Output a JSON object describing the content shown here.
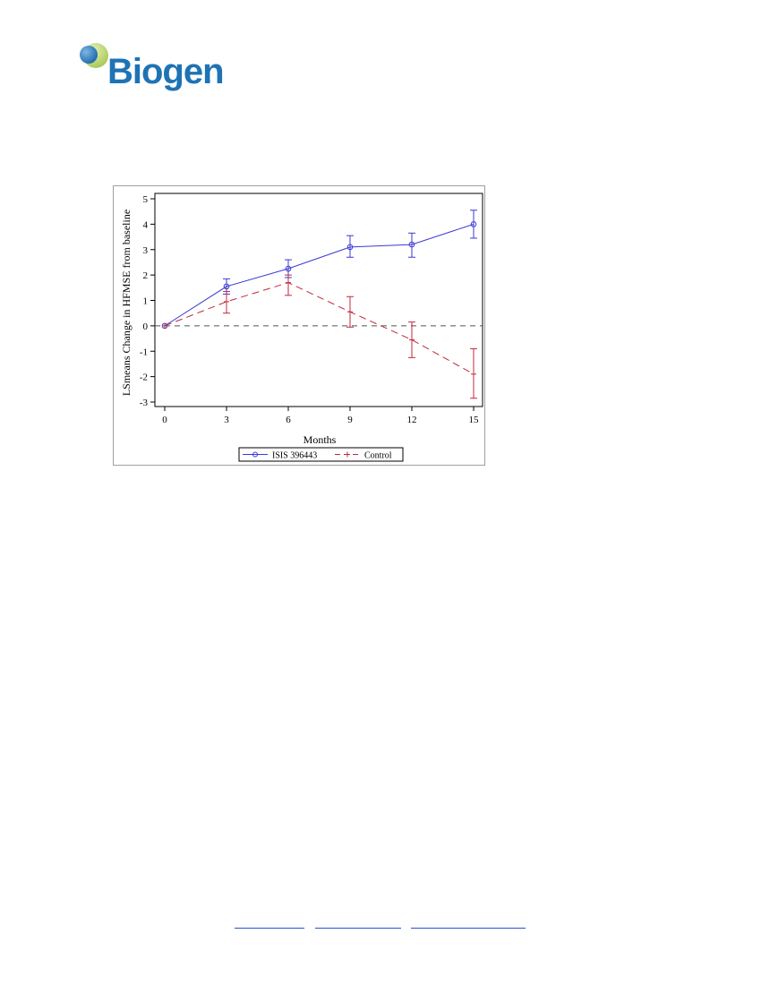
{
  "brand": {
    "name": "Biogen",
    "trademark": ".",
    "colors": {
      "text": "#1e73b5",
      "sphere_dark": "#1b6aa8",
      "sphere_light": "#b8d56a"
    }
  },
  "chart_data": {
    "type": "line",
    "title": "",
    "xlabel": "Months",
    "ylabel": "LSmeans Change in HFMSE from baseline",
    "x": [
      0,
      3,
      6,
      9,
      12,
      15
    ],
    "xticks": [
      "0",
      "3",
      "6",
      "9",
      "12",
      "15"
    ],
    "yticks": [
      "5",
      "4",
      "3",
      "2",
      "1",
      "0",
      "-1",
      "-2",
      "-3"
    ],
    "xlim": [
      0,
      15
    ],
    "ylim": [
      -3,
      5
    ],
    "reference_line_y": 0,
    "grid": false,
    "legend_placement": "bottom",
    "series": [
      {
        "name": "ISIS 396443",
        "color": "#3a3ad6",
        "style": "solid",
        "marker": "circle",
        "values": [
          0,
          1.55,
          2.25,
          3.1,
          3.2,
          4.0
        ],
        "lower": [
          0,
          1.25,
          1.9,
          2.7,
          2.7,
          3.45
        ],
        "upper": [
          0,
          1.85,
          2.6,
          3.55,
          3.65,
          4.55
        ]
      },
      {
        "name": "Control",
        "color": "#c0283c",
        "style": "dashed",
        "marker": "plus",
        "values": [
          0,
          0.95,
          1.7,
          0.55,
          -0.55,
          -1.9
        ],
        "lower": [
          0,
          0.5,
          1.2,
          -0.05,
          -1.25,
          -2.85
        ],
        "upper": [
          0,
          1.35,
          2.0,
          1.15,
          0.15,
          -0.9
        ]
      }
    ]
  }
}
